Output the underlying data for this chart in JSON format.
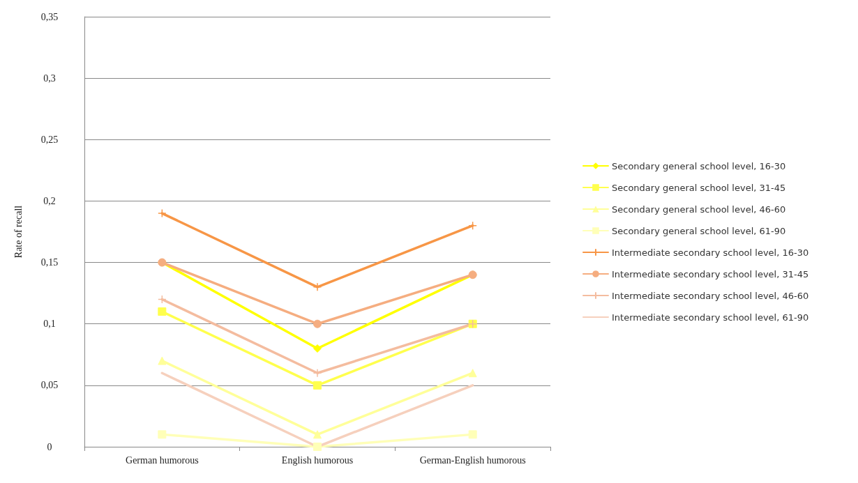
{
  "chart_data": {
    "type": "line",
    "ylabel": "Rate of recall",
    "categories": [
      "German humorous",
      "English humorous",
      "German-English humorous"
    ],
    "series": [
      {
        "name": "Secondary general school level, 16-30",
        "color": "#ffff00",
        "marker": "diamond",
        "values": [
          0.15,
          0.08,
          0.14
        ]
      },
      {
        "name": "Secondary general school level, 31-45",
        "color": "#ffff4d",
        "marker": "square",
        "values": [
          0.11,
          0.05,
          0.1
        ]
      },
      {
        "name": "Secondary general school level, 46-60",
        "color": "#ffff99",
        "marker": "triangle",
        "values": [
          0.07,
          0.01,
          0.06
        ]
      },
      {
        "name": "Secondary general school level, 61-90",
        "color": "#ffffb8",
        "marker": "square",
        "values": [
          0.01,
          0,
          0.01
        ]
      },
      {
        "name": "Intermediate secondary school level, 16-30",
        "color": "#f79646",
        "marker": "cross",
        "values": [
          0.19,
          0.13,
          0.18
        ]
      },
      {
        "name": "Intermediate secondary school level, 31-45",
        "color": "#f5ad80",
        "marker": "circle",
        "values": [
          0.15,
          0.1,
          0.14
        ]
      },
      {
        "name": "Intermediate secondary school level, 46-60",
        "color": "#f4bc9f",
        "marker": "cross",
        "values": [
          0.12,
          0.06,
          0.1
        ]
      },
      {
        "name": "Intermediate secondary school level, 61-90",
        "color": "#f6d0bd",
        "marker": "none",
        "values": [
          0.06,
          0,
          0.05
        ]
      }
    ],
    "ylim": [
      0,
      0.35
    ],
    "yticks": [
      0,
      {
        "value": 0.05,
        "label": "0,05"
      },
      {
        "value": 0.1,
        "label": "0,1"
      },
      {
        "value": 0.15,
        "label": "0,15"
      },
      {
        "value": 0.2,
        "label": "0,2"
      },
      {
        "value": 0.25,
        "label": "0,25"
      },
      {
        "value": 0.3,
        "label": "0,3"
      },
      {
        "value": 0.35,
        "label": "0,35"
      }
    ],
    "grid": "y",
    "legend": "right",
    "line_style": "solid"
  }
}
